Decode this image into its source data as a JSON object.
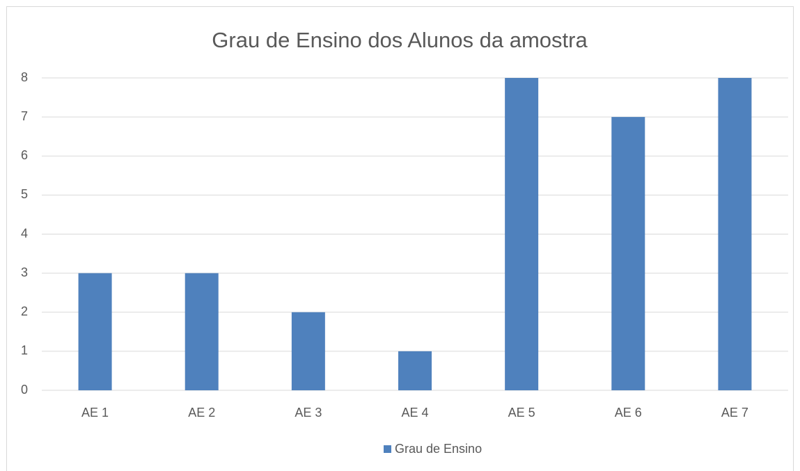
{
  "chart_data": {
    "type": "bar",
    "title": "Grau de Ensino dos Alunos da amostra",
    "categories": [
      "AE 1",
      "AE 2",
      "AE 3",
      "AE 4",
      "AE 5",
      "AE 6",
      "AE 7"
    ],
    "series": [
      {
        "name": "Grau de Ensino",
        "color": "#4f81bd",
        "values": [
          3,
          3,
          2,
          1,
          8,
          7,
          8
        ]
      }
    ],
    "ylim": [
      0,
      8
    ],
    "yticks": [
      0,
      1,
      2,
      3,
      4,
      5,
      6,
      7,
      8
    ],
    "grid": true,
    "legend": "bottom"
  }
}
